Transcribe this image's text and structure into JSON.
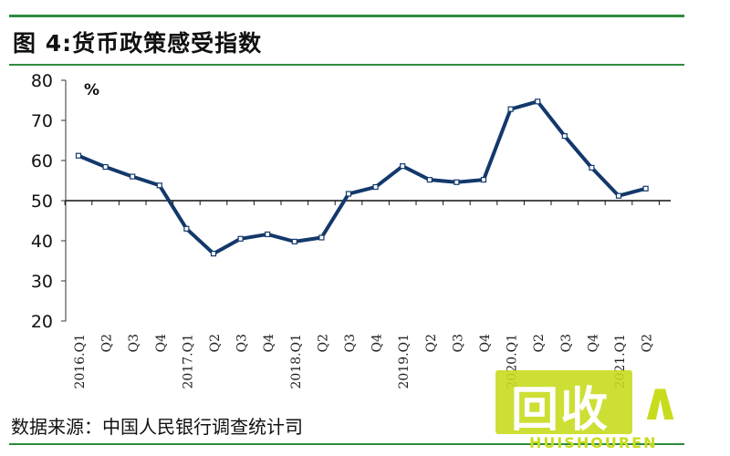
{
  "header": {
    "title": "图 4:货币政策感受指数"
  },
  "footer": {
    "source": "数据来源：中国人民银行调查统计司"
  },
  "watermark": {
    "text": "回收",
    "subtext": "HUISHOUREN",
    "color": "#c8dc1e"
  },
  "chart_data": {
    "type": "line",
    "title": "",
    "ylabel": "%",
    "ylim": [
      20,
      80
    ],
    "yticks": [
      20,
      30,
      40,
      50,
      60,
      70,
      80
    ],
    "reference_line": 50,
    "categories": [
      "2016.Q1",
      "Q2",
      "Q3",
      "Q4",
      "2017.Q1",
      "Q2",
      "Q3",
      "Q4",
      "2018.Q1",
      "Q2",
      "Q3",
      "Q4",
      "2019.Q1",
      "Q2",
      "Q3",
      "Q4",
      "2020.Q1",
      "Q2",
      "Q3",
      "Q4",
      "2021.Q1",
      "Q2"
    ],
    "series": [
      {
        "values": [
          61.2,
          58.4,
          56.0,
          53.8,
          43.0,
          36.8,
          40.5,
          41.6,
          39.8,
          40.8,
          51.7,
          53.4,
          58.6,
          55.2,
          54.6,
          55.2,
          72.8,
          74.7,
          66.1,
          58.2,
          51.2,
          53.0
        ],
        "color": "#13386b"
      }
    ]
  }
}
